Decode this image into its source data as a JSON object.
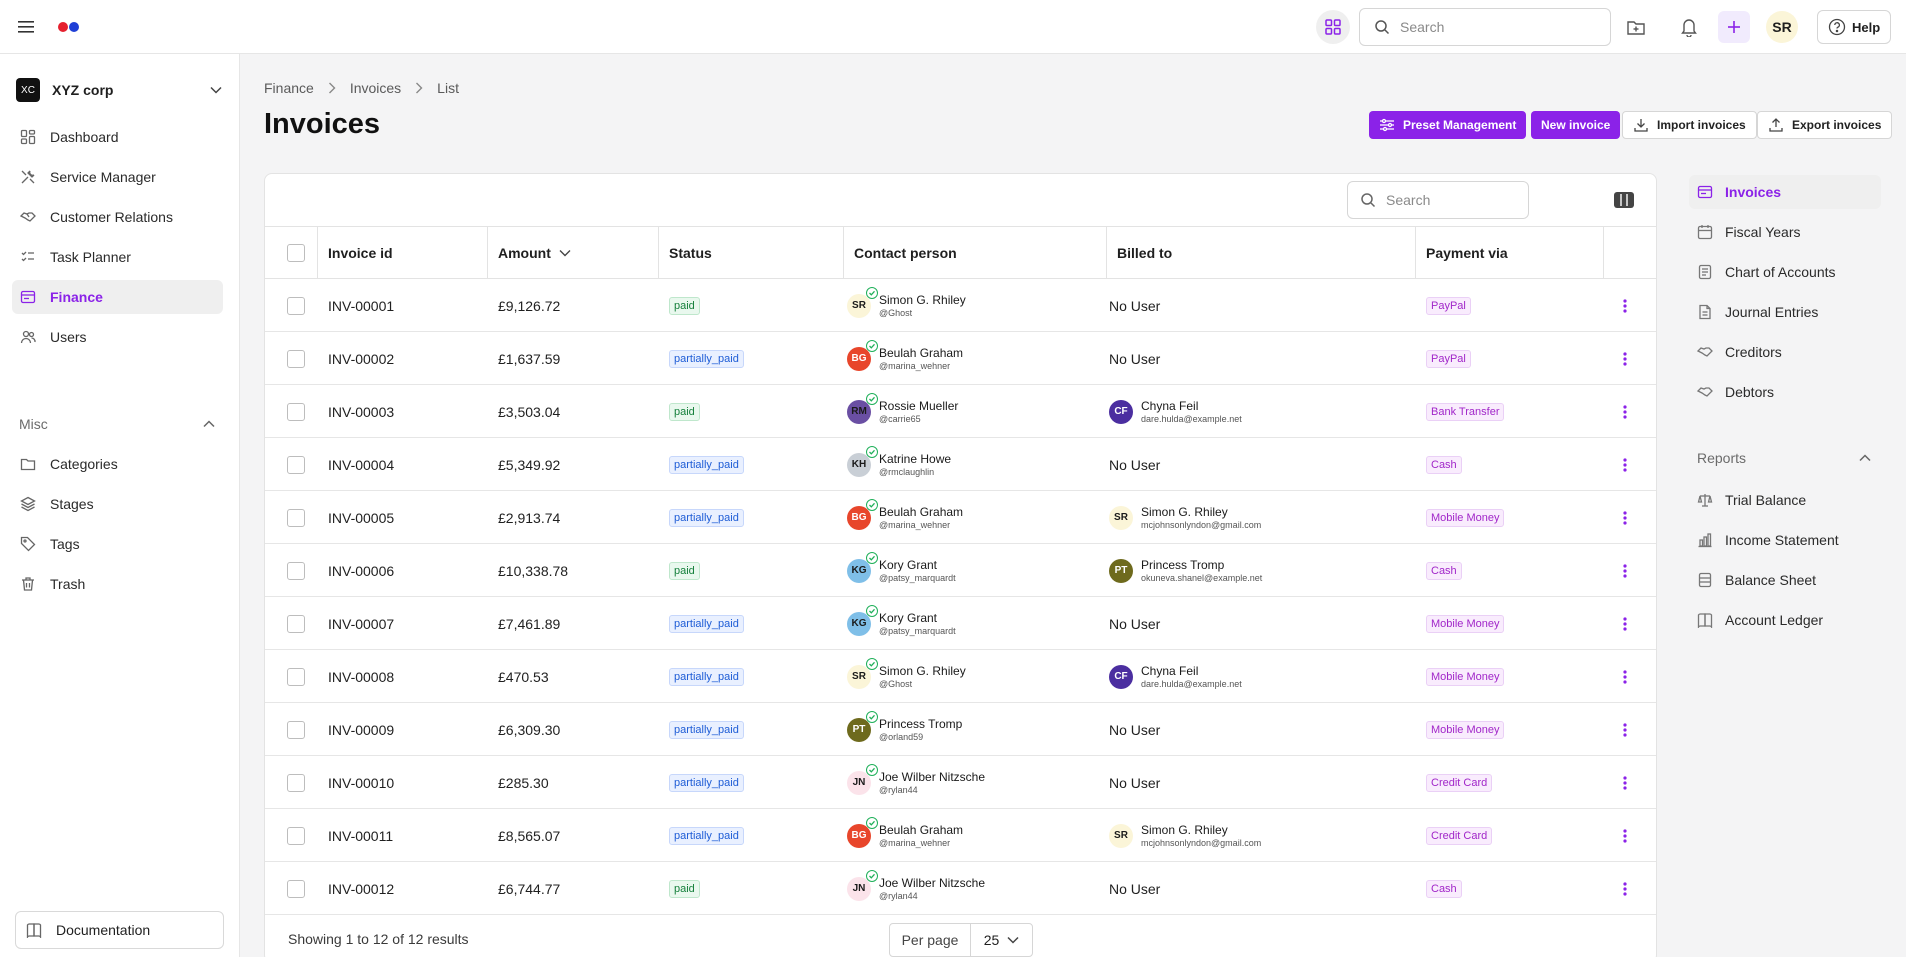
{
  "topbar": {
    "search_placeholder": "Search",
    "help_label": "Help",
    "user_initials": "SR"
  },
  "sidebar": {
    "company": {
      "initials": "XC",
      "name": "XYZ corp"
    },
    "items": [
      {
        "label": "Dashboard",
        "icon": "dashboard-icon"
      },
      {
        "label": "Service Manager",
        "icon": "tools-icon"
      },
      {
        "label": "Customer Relations",
        "icon": "handshake-icon"
      },
      {
        "label": "Task Planner",
        "icon": "task-icon"
      },
      {
        "label": "Finance",
        "icon": "finance-icon",
        "active": true
      },
      {
        "label": "Users",
        "icon": "users-icon"
      }
    ],
    "misc_label": "Misc",
    "misc_items": [
      {
        "label": "Categories",
        "icon": "folder-icon"
      },
      {
        "label": "Stages",
        "icon": "layers-icon"
      },
      {
        "label": "Tags",
        "icon": "tag-icon"
      },
      {
        "label": "Trash",
        "icon": "trash-icon"
      }
    ],
    "documentation_label": "Documentation"
  },
  "breadcrumb": [
    "Finance",
    "Invoices",
    "List"
  ],
  "page_title": "Invoices",
  "actions": {
    "preset": "Preset Management",
    "new_invoice": "New invoice",
    "import": "Import invoices",
    "export": "Export invoices"
  },
  "table": {
    "search_placeholder": "Search",
    "columns": {
      "invoice_id": "Invoice id",
      "amount": "Amount",
      "status": "Status",
      "contact": "Contact person",
      "billed_to": "Billed to",
      "payment": "Payment via"
    },
    "rows": [
      {
        "id": "INV-00001",
        "amount": "£9,126.72",
        "status": "paid",
        "contact": {
          "initials": "SR",
          "name": "Simon G. Rhiley",
          "handle": "@Ghost",
          "bg": "#fbf5d8",
          "fg": "#1a1a1a"
        },
        "billed": null,
        "billed_text": "No User",
        "payment": "PayPal"
      },
      {
        "id": "INV-00002",
        "amount": "£1,637.59",
        "status": "partially_paid",
        "contact": {
          "initials": "BG",
          "name": "Beulah Graham",
          "handle": "@marina_wehner",
          "bg": "#e8462b",
          "fg": "#ffffff"
        },
        "billed": null,
        "billed_text": "No User",
        "payment": "PayPal"
      },
      {
        "id": "INV-00003",
        "amount": "£3,503.04",
        "status": "paid",
        "contact": {
          "initials": "RM",
          "name": "Rossie Mueller",
          "handle": "@carrie65",
          "bg": "#6a4fa3",
          "fg": "#1a1a1a"
        },
        "billed": {
          "initials": "CF",
          "name": "Chyna Feil",
          "email": "dare.hulda@example.net",
          "bg": "#4b2ea0",
          "fg": "#ffffff"
        },
        "payment": "Bank Transfer"
      },
      {
        "id": "INV-00004",
        "amount": "£5,349.92",
        "status": "partially_paid",
        "contact": {
          "initials": "KH",
          "name": "Katrine Howe",
          "handle": "@rmclaughlin",
          "bg": "#c9cfd6",
          "fg": "#1a1a1a"
        },
        "billed": null,
        "billed_text": "No User",
        "payment": "Cash"
      },
      {
        "id": "INV-00005",
        "amount": "£2,913.74",
        "status": "partially_paid",
        "contact": {
          "initials": "BG",
          "name": "Beulah Graham",
          "handle": "@marina_wehner",
          "bg": "#e8462b",
          "fg": "#ffffff"
        },
        "billed": {
          "initials": "SR",
          "name": "Simon G. Rhiley",
          "email": "mcjohnsonlyndon@gmail.com",
          "bg": "#fbf5d8",
          "fg": "#1a1a1a"
        },
        "payment": "Mobile Money"
      },
      {
        "id": "INV-00006",
        "amount": "£10,338.78",
        "status": "paid",
        "contact": {
          "initials": "KG",
          "name": "Kory Grant",
          "handle": "@patsy_marquardt",
          "bg": "#7fbfe8",
          "fg": "#1a1a1a"
        },
        "billed": {
          "initials": "PT",
          "name": "Princess Tromp",
          "email": "okuneva.shanel@example.net",
          "bg": "#6e6a1d",
          "fg": "#ffffff"
        },
        "payment": "Cash"
      },
      {
        "id": "INV-00007",
        "amount": "£7,461.89",
        "status": "partially_paid",
        "contact": {
          "initials": "KG",
          "name": "Kory Grant",
          "handle": "@patsy_marquardt",
          "bg": "#7fbfe8",
          "fg": "#1a1a1a"
        },
        "billed": null,
        "billed_text": "No User",
        "payment": "Mobile Money"
      },
      {
        "id": "INV-00008",
        "amount": "£470.53",
        "status": "partially_paid",
        "contact": {
          "initials": "SR",
          "name": "Simon G. Rhiley",
          "handle": "@Ghost",
          "bg": "#fbf5d8",
          "fg": "#1a1a1a"
        },
        "billed": {
          "initials": "CF",
          "name": "Chyna Feil",
          "email": "dare.hulda@example.net",
          "bg": "#4b2ea0",
          "fg": "#ffffff"
        },
        "payment": "Mobile Money"
      },
      {
        "id": "INV-00009",
        "amount": "£6,309.30",
        "status": "partially_paid",
        "contact": {
          "initials": "PT",
          "name": "Princess Tromp",
          "handle": "@orland59",
          "bg": "#6e6a1d",
          "fg": "#ffffff"
        },
        "billed": null,
        "billed_text": "No User",
        "payment": "Mobile Money"
      },
      {
        "id": "INV-00010",
        "amount": "£285.30",
        "status": "partially_paid",
        "contact": {
          "initials": "JN",
          "name": "Joe Wilber Nitzsche",
          "handle": "@rylan44",
          "bg": "#fbe3ea",
          "fg": "#1a1a1a"
        },
        "billed": null,
        "billed_text": "No User",
        "payment": "Credit Card"
      },
      {
        "id": "INV-00011",
        "amount": "£8,565.07",
        "status": "partially_paid",
        "contact": {
          "initials": "BG",
          "name": "Beulah Graham",
          "handle": "@marina_wehner",
          "bg": "#e8462b",
          "fg": "#ffffff"
        },
        "billed": {
          "initials": "SR",
          "name": "Simon G. Rhiley",
          "email": "mcjohnsonlyndon@gmail.com",
          "bg": "#fbf5d8",
          "fg": "#1a1a1a"
        },
        "payment": "Credit Card"
      },
      {
        "id": "INV-00012",
        "amount": "£6,744.77",
        "status": "paid",
        "contact": {
          "initials": "JN",
          "name": "Joe Wilber Nitzsche",
          "handle": "@rylan44",
          "bg": "#fbe3ea",
          "fg": "#1a1a1a"
        },
        "billed": null,
        "billed_text": "No User",
        "payment": "Cash"
      }
    ],
    "footer": {
      "showing": "Showing 1 to 12 of 12 results",
      "per_page_label": "Per page",
      "per_page_value": "25"
    }
  },
  "right_nav": {
    "items": [
      {
        "label": "Invoices",
        "icon": "invoice-icon",
        "active": true
      },
      {
        "label": "Fiscal Years",
        "icon": "calendar-icon"
      },
      {
        "label": "Chart of Accounts",
        "icon": "ledger-icon"
      },
      {
        "label": "Journal Entries",
        "icon": "journal-icon"
      },
      {
        "label": "Creditors",
        "icon": "creditors-icon"
      },
      {
        "label": "Debtors",
        "icon": "debtors-icon"
      }
    ],
    "reports_label": "Reports",
    "report_items": [
      {
        "label": "Trial Balance",
        "icon": "scale-icon"
      },
      {
        "label": "Income Statement",
        "icon": "bar-chart-icon"
      },
      {
        "label": "Balance Sheet",
        "icon": "sheet-icon"
      },
      {
        "label": "Account Ledger",
        "icon": "book-icon"
      }
    ]
  },
  "colors": {
    "accent": "#8b22e8",
    "paid": "#16803c",
    "partially_paid": "#1f5dd6",
    "payment_tag": "#a126c9"
  }
}
